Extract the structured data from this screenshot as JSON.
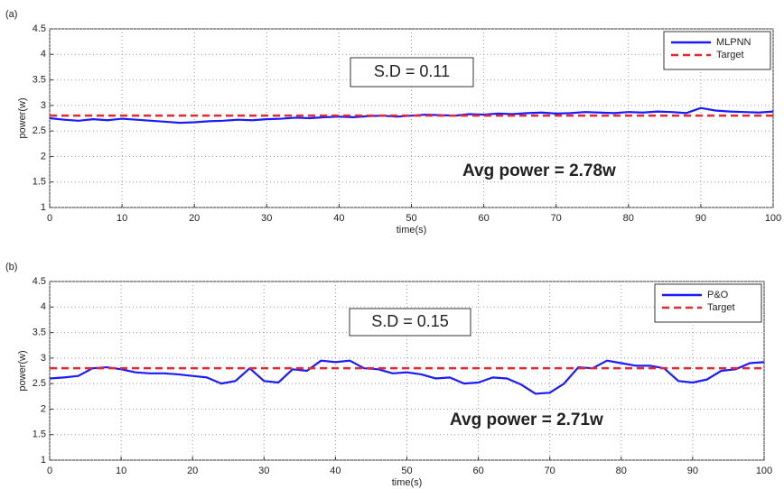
{
  "chart_data": [
    {
      "type": "line",
      "panel_label": "(a)",
      "xlabel": "time(s)",
      "ylabel": "power(w)",
      "xlim": [
        0,
        100
      ],
      "ylim": [
        1,
        4.5
      ],
      "xticks": [
        0,
        10,
        20,
        30,
        40,
        50,
        60,
        70,
        80,
        90,
        100
      ],
      "yticks": [
        1,
        1.5,
        2,
        2.5,
        3,
        3.5,
        4,
        4.5
      ],
      "grid": true,
      "legend_loc": "upper right",
      "sd_label": "S.D = 0.11",
      "avg_label": "Avg power = 2.78w",
      "series": [
        {
          "name": "MLPNN",
          "color": "#1a1aff",
          "linestyle": "solid",
          "x": [
            0,
            2,
            4,
            6,
            8,
            10,
            12,
            14,
            16,
            18,
            20,
            22,
            24,
            26,
            28,
            30,
            32,
            34,
            36,
            38,
            40,
            42,
            44,
            46,
            48,
            50,
            52,
            54,
            56,
            58,
            60,
            62,
            64,
            66,
            68,
            70,
            72,
            74,
            76,
            78,
            80,
            82,
            84,
            86,
            88,
            90,
            92,
            94,
            96,
            98,
            100
          ],
          "values": [
            2.75,
            2.72,
            2.7,
            2.73,
            2.71,
            2.74,
            2.72,
            2.7,
            2.68,
            2.66,
            2.67,
            2.69,
            2.7,
            2.72,
            2.71,
            2.73,
            2.74,
            2.76,
            2.75,
            2.77,
            2.78,
            2.77,
            2.79,
            2.8,
            2.78,
            2.8,
            2.82,
            2.81,
            2.8,
            2.83,
            2.82,
            2.84,
            2.83,
            2.85,
            2.86,
            2.84,
            2.85,
            2.87,
            2.86,
            2.85,
            2.87,
            2.86,
            2.88,
            2.87,
            2.85,
            2.95,
            2.9,
            2.88,
            2.87,
            2.86,
            2.88
          ]
        },
        {
          "name": "Target",
          "color": "#e8262b",
          "linestyle": "dashed",
          "x": [
            0,
            100
          ],
          "values": [
            2.8,
            2.8
          ]
        }
      ]
    },
    {
      "type": "line",
      "panel_label": "(b)",
      "xlabel": "time(s)",
      "ylabel": "power(w)",
      "xlim": [
        0,
        100
      ],
      "ylim": [
        1,
        4.5
      ],
      "xticks": [
        0,
        10,
        20,
        30,
        40,
        50,
        60,
        70,
        80,
        90,
        100
      ],
      "yticks": [
        1,
        1.5,
        2,
        2.5,
        3,
        3.5,
        4,
        4.5
      ],
      "grid": true,
      "legend_loc": "upper right",
      "sd_label": "S.D = 0.15",
      "avg_label": "Avg power = 2.71w",
      "series": [
        {
          "name": "P&O",
          "color": "#1a1aff",
          "linestyle": "solid",
          "x": [
            0,
            2,
            4,
            6,
            8,
            10,
            12,
            14,
            16,
            18,
            20,
            22,
            24,
            26,
            28,
            30,
            32,
            34,
            36,
            38,
            40,
            42,
            44,
            46,
            48,
            50,
            52,
            54,
            56,
            58,
            60,
            62,
            64,
            66,
            68,
            70,
            72,
            74,
            76,
            78,
            80,
            82,
            84,
            86,
            88,
            90,
            92,
            94,
            96,
            98,
            100
          ],
          "values": [
            2.6,
            2.62,
            2.65,
            2.8,
            2.82,
            2.78,
            2.72,
            2.7,
            2.7,
            2.68,
            2.65,
            2.62,
            2.5,
            2.55,
            2.8,
            2.55,
            2.52,
            2.78,
            2.75,
            2.95,
            2.92,
            2.95,
            2.8,
            2.78,
            2.7,
            2.72,
            2.68,
            2.6,
            2.62,
            2.5,
            2.52,
            2.62,
            2.6,
            2.48,
            2.3,
            2.32,
            2.5,
            2.82,
            2.8,
            2.95,
            2.9,
            2.85,
            2.85,
            2.8,
            2.55,
            2.52,
            2.58,
            2.75,
            2.78,
            2.9,
            2.92
          ]
        },
        {
          "name": "Target",
          "color": "#e8262b",
          "linestyle": "dashed",
          "x": [
            0,
            100
          ],
          "values": [
            2.8,
            2.8
          ]
        }
      ]
    }
  ]
}
